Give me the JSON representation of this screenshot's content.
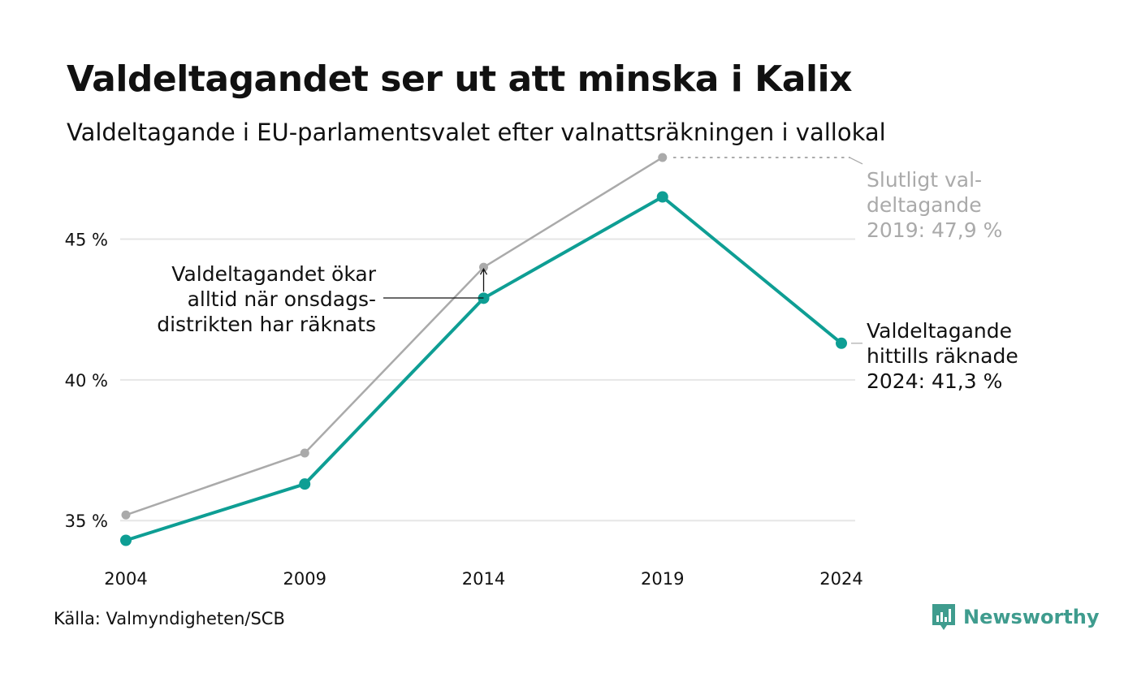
{
  "header": {
    "title": "Valdeltagandet ser ut att minska i Kalix",
    "subtitle": "Valdeltagande i EU-parlamentsvalet efter valnattsräkningen i vallokal"
  },
  "footer": {
    "source": "Källa: Valmyndigheten/SCB",
    "brand": "Newsworthy"
  },
  "colors": {
    "counted": "#0e9e94",
    "final": "#aaaaaa",
    "grid": "#e6e6e6",
    "text": "#111111",
    "brand": "#3f9c8e"
  },
  "icons": {
    "logo": "newsworthy-chart-icon"
  },
  "chart_data": {
    "type": "line",
    "x": [
      2004,
      2009,
      2014,
      2019,
      2024
    ],
    "ylim": [
      34.3,
      48
    ],
    "yticks": [
      35,
      40,
      45
    ],
    "ytick_labels": [
      "35 %",
      "40 %",
      "45 %"
    ],
    "xtick_labels": [
      "2004",
      "2009",
      "2014",
      "2019",
      "2024"
    ],
    "grid": true,
    "series": [
      {
        "key": "final",
        "values": [
          35.2,
          37.4,
          44.0,
          47.9,
          null
        ]
      },
      {
        "key": "counted",
        "values": [
          34.3,
          36.3,
          42.9,
          46.5,
          41.3
        ]
      }
    ],
    "annotations": {
      "final_2019": [
        "Slutligt val-",
        "deltagande",
        "2019: 47,9 %"
      ],
      "counted_2024": [
        "Valdeltagande",
        "hittills räknade",
        "2024: 41,3 %"
      ],
      "note": [
        "Valdeltagandet ökar",
        "alltid när onsdags-",
        "distrikten har räknats"
      ]
    }
  }
}
